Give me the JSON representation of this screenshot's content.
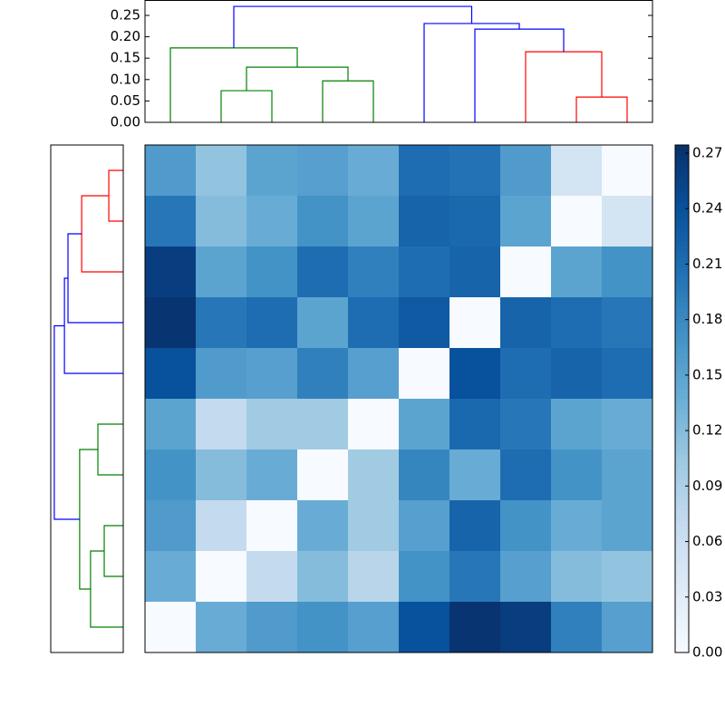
{
  "chart_data": [
    {
      "type": "dendrogram",
      "orientation": "top",
      "links": [
        {
          "x": [
            1,
            2
          ],
          "bottom": [
            0,
            0
          ],
          "height": 0.074,
          "color": "#008000"
        },
        {
          "x": [
            3,
            4
          ],
          "bottom": [
            0,
            0
          ],
          "height": 0.097,
          "color": "#008000"
        },
        {
          "x": [
            1.5,
            3.5
          ],
          "bottom": [
            0.074,
            0.097
          ],
          "height": 0.129,
          "color": "#008000"
        },
        {
          "x": [
            0,
            2.5
          ],
          "bottom": [
            0,
            0.129
          ],
          "height": 0.174,
          "color": "#008000"
        },
        {
          "x": [
            8,
            9
          ],
          "bottom": [
            0,
            0
          ],
          "height": 0.059,
          "color": "#ff0000"
        },
        {
          "x": [
            7,
            8.5
          ],
          "bottom": [
            0,
            0.059
          ],
          "height": 0.165,
          "color": "#ff0000"
        },
        {
          "x": [
            6,
            7.75
          ],
          "bottom": [
            0,
            0.165
          ],
          "height": 0.218,
          "color": "#0000ff"
        },
        {
          "x": [
            5,
            6.875
          ],
          "bottom": [
            0,
            0.218
          ],
          "height": 0.231,
          "color": "#0000ff"
        },
        {
          "x": [
            1.25,
            5.9375
          ],
          "bottom": [
            0.174,
            0.231
          ],
          "height": 0.271,
          "color": "#0000ff"
        }
      ],
      "ylim": [
        0,
        0.286
      ],
      "yticks": [
        {
          "value": 0,
          "label": "0.00"
        },
        0.05,
        {
          "value": 0.1,
          "label": "0.10"
        },
        0.15,
        {
          "value": 0.2,
          "label": "0.20"
        },
        0.25
      ]
    },
    {
      "type": "dendrogram",
      "orientation": "left",
      "links": [
        {
          "x": [
            0,
            1
          ],
          "bottom": [
            0,
            0
          ],
          "height": 0.057,
          "color": "#ff0000"
        },
        {
          "x": [
            0.5,
            2
          ],
          "bottom": [
            0.057,
            0
          ],
          "height": 0.164,
          "color": "#ff0000"
        },
        {
          "x": [
            1.25,
            3
          ],
          "bottom": [
            0.164,
            0
          ],
          "height": 0.218,
          "color": "#0000ff"
        },
        {
          "x": [
            2.125,
            4
          ],
          "bottom": [
            0.218,
            0
          ],
          "height": 0.232,
          "color": "#0000ff"
        },
        {
          "x": [
            5,
            6
          ],
          "bottom": [
            0,
            0
          ],
          "height": 0.1,
          "color": "#008000"
        },
        {
          "x": [
            7,
            8
          ],
          "bottom": [
            0,
            0
          ],
          "height": 0.075,
          "color": "#008000"
        },
        {
          "x": [
            7.5,
            9
          ],
          "bottom": [
            0.075,
            0
          ],
          "height": 0.129,
          "color": "#008000"
        },
        {
          "x": [
            5.5,
            8.25
          ],
          "bottom": [
            0.1,
            0.129
          ],
          "height": 0.172,
          "color": "#008000"
        },
        {
          "x": [
            3.0625,
            6.875
          ],
          "bottom": [
            0.232,
            0.172
          ],
          "height": 0.272,
          "color": "#0000ff"
        }
      ],
      "xlim": [
        0.286,
        0
      ]
    },
    {
      "type": "heatmap",
      "colormap": "Blues",
      "values": [
        [
          0.16,
          0.11,
          0.15,
          0.155,
          0.14,
          0.21,
          0.205,
          0.16,
          0.05,
          0.0
        ],
        [
          0.2,
          0.12,
          0.14,
          0.17,
          0.15,
          0.22,
          0.215,
          0.15,
          0.0,
          0.05
        ],
        [
          0.26,
          0.15,
          0.17,
          0.21,
          0.19,
          0.21,
          0.22,
          0.0,
          0.15,
          0.17
        ],
        [
          0.27,
          0.2,
          0.21,
          0.15,
          0.21,
          0.23,
          0.0,
          0.22,
          0.21,
          0.2
        ],
        [
          0.24,
          0.16,
          0.155,
          0.19,
          0.155,
          0.0,
          0.24,
          0.21,
          0.22,
          0.21
        ],
        [
          0.15,
          0.07,
          0.1,
          0.1,
          0.0,
          0.15,
          0.215,
          0.2,
          0.15,
          0.14
        ],
        [
          0.17,
          0.12,
          0.14,
          0.0,
          0.1,
          0.185,
          0.14,
          0.21,
          0.17,
          0.15
        ],
        [
          0.16,
          0.07,
          0.0,
          0.14,
          0.1,
          0.155,
          0.22,
          0.17,
          0.14,
          0.15
        ],
        [
          0.14,
          0.0,
          0.07,
          0.12,
          0.08,
          0.17,
          0.2,
          0.155,
          0.12,
          0.11
        ],
        [
          0.0,
          0.14,
          0.16,
          0.17,
          0.155,
          0.24,
          0.27,
          0.26,
          0.19,
          0.155
        ]
      ],
      "vlim": [
        0,
        0.2744
      ],
      "colorbar_ticks": [
        {
          "value": 0,
          "label": "0.00"
        },
        0.03,
        0.06,
        0.09,
        0.12,
        0.15,
        0.18,
        0.21,
        0.24,
        0.27
      ]
    }
  ]
}
